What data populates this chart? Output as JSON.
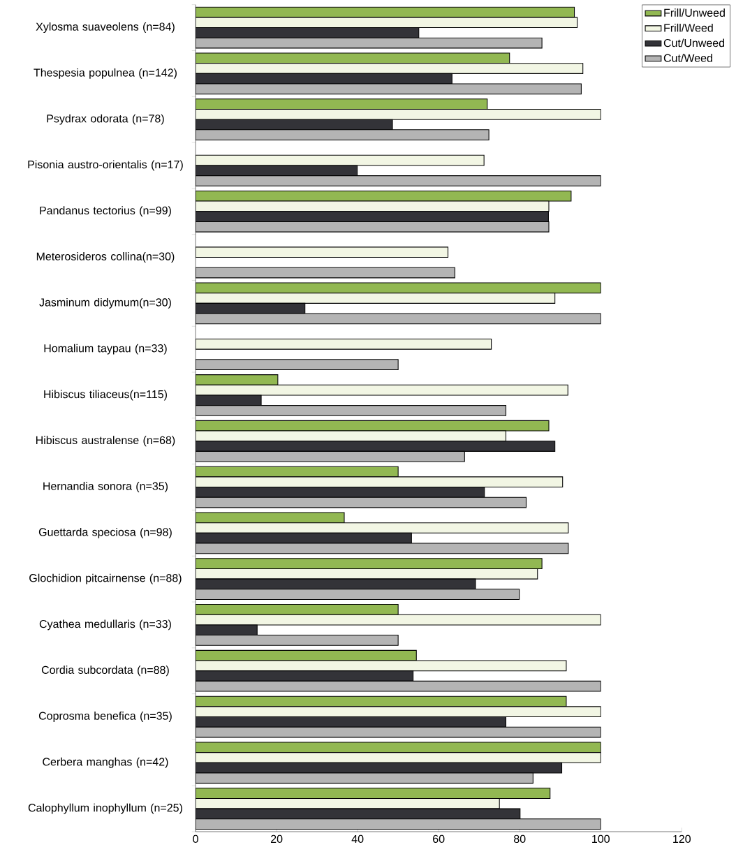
{
  "chart_data": {
    "type": "bar",
    "orientation": "horizontal",
    "categories": [
      "Xylosma suaveolens (n=84)",
      "Thespesia populnea (n=142)",
      "Psydrax odorata (n=78)",
      "Pisonia austro-orientalis (n=17)",
      "Pandanus tectorius (n=99)",
      "Meterosideros collina(n=30)",
      "Jasminum didymum(n=30)",
      "Homalium taypau (n=33)",
      "Hibiscus tiliaceus(n=115)",
      "Hibiscus australense (n=68)",
      "Hernandia sonora (n=35)",
      "Guettarda speciosa (n=98)",
      "Glochidion pitcairnense (n=88)",
      "Cyathea medullaris (n=33)",
      "Cordia subcordata (n=88)",
      "Coprosma benefica (n=35)",
      "Cerbera manghas (n=42)",
      "Calophyllum inophyllum (n=25)"
    ],
    "series": [
      {
        "name": "Frill/Unweed",
        "color": "#92b852",
        "values": [
          93.5,
          77.5,
          72,
          null,
          92.7,
          null,
          100,
          null,
          20.3,
          87.2,
          50,
          36.7,
          85.5,
          50,
          54.5,
          91.5,
          100,
          87.5
        ]
      },
      {
        "name": "Frill/Weed",
        "color": "#f2f6e4",
        "values": [
          94.2,
          95.6,
          100,
          71.2,
          87.2,
          62.3,
          88.7,
          73,
          91.9,
          76.6,
          90.6,
          92,
          84.4,
          100,
          91.5,
          100,
          100,
          75
        ]
      },
      {
        "name": "Cut/Unweed",
        "color": "#333338",
        "values": [
          55.1,
          63.3,
          48.6,
          39.9,
          87.1,
          null,
          27,
          null,
          16.2,
          88.7,
          71.3,
          53.3,
          69.1,
          15.2,
          53.7,
          76.6,
          90.4,
          80.1
        ]
      },
      {
        "name": "Cut/Weed",
        "color": "#b4b4b4",
        "values": [
          85.5,
          95.2,
          72.4,
          100,
          87.2,
          64,
          100,
          50,
          76.6,
          66.4,
          81.6,
          92,
          79.9,
          50,
          100,
          100,
          83.3,
          100
        ]
      }
    ],
    "xlim": [
      0,
      120
    ],
    "xticks": [
      0,
      20,
      40,
      60,
      80,
      100,
      120
    ],
    "grid": false,
    "legend": "top right"
  }
}
